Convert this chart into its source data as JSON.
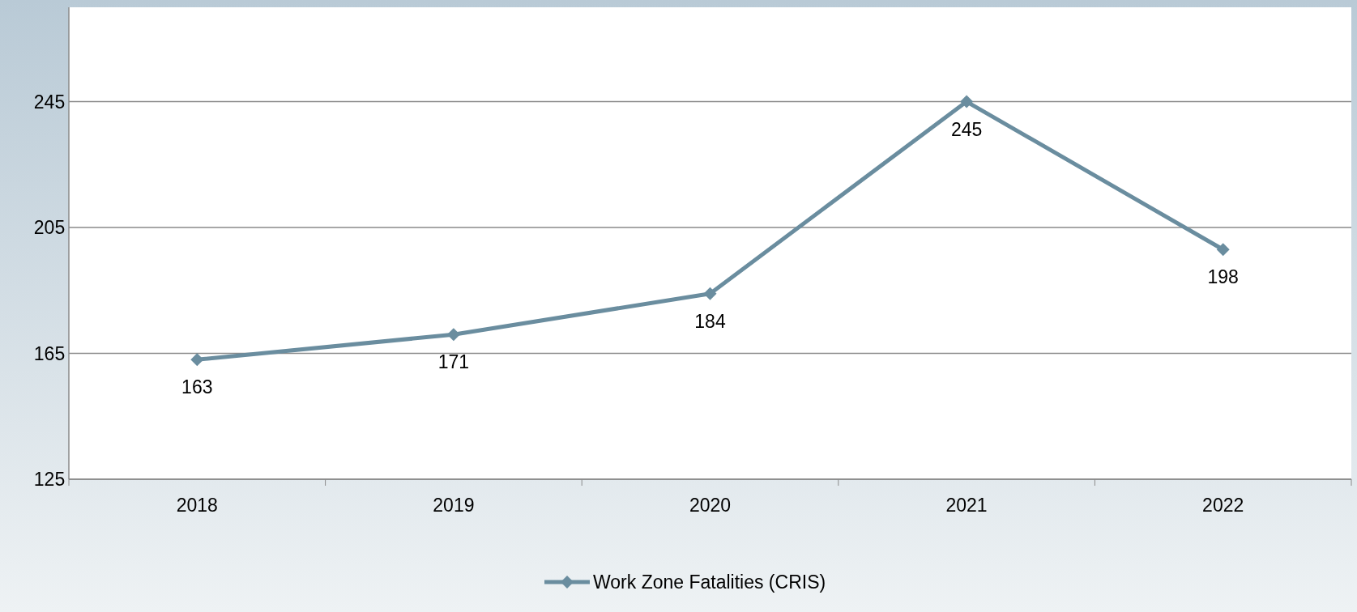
{
  "chart_data": {
    "type": "line",
    "categories": [
      "2018",
      "2019",
      "2020",
      "2021",
      "2022"
    ],
    "series": [
      {
        "name": "Work Zone Fatalities (CRIS)",
        "color": "#6a8d9f",
        "values": [
          163,
          171,
          184,
          245,
          198
        ]
      }
    ],
    "ylim": [
      125,
      275
    ],
    "yticks": [
      125,
      165,
      205,
      245
    ],
    "grid": "y",
    "legend": "bottom",
    "marker": "diamond",
    "line_style": "solid",
    "data_labels": true
  }
}
